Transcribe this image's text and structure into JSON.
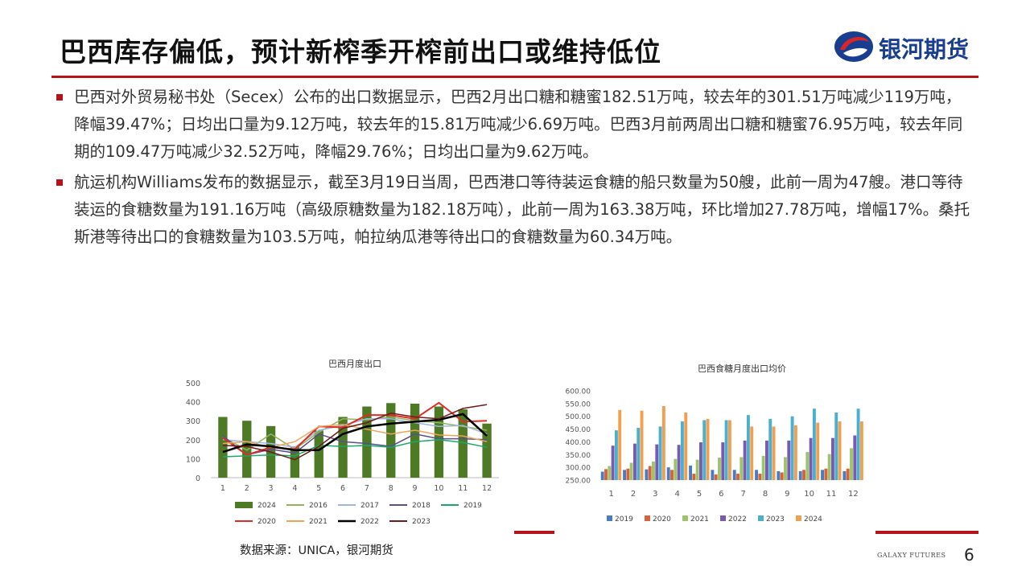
{
  "title": "巴西库存偏低，预计新榨季开榨前出口或维持低位",
  "logo": {
    "text": "银河期货"
  },
  "bullets": [
    "巴西对外贸易秘书处（Secex）公布的出口数据显示，巴西2月出口糖和糖蜜182.51万吨，较去年的301.51万吨减少119万吨，降幅39.47%；日均出口量为9.12万吨，较去年的15.81万吨减少6.69万吨。巴西3月前两周出口糖和糖蜜76.95万吨，较去年同期的109.47万吨减少32.52万吨，降幅29.76%；日均出口量为9.62万吨。",
    "航运机构Williams发布的数据显示，截至3月19日当周，巴西港口等待装运食糖的船只数量为50艘，此前一周为47艘。港口等待装运的食糖数量为191.16万吨（高级原糖数量为182.18万吨），此前一周为163.38万吨，环比增加27.78万吨，增幅17%。桑托斯港等待出口的食糖数量为103.5万吨，帕拉纳瓜港等待出口的食糖数量为60.34万吨。"
  ],
  "chart_data": [
    {
      "type": "bar+line",
      "title": "巴西月度出口",
      "categories": [
        "1",
        "2",
        "3",
        "4",
        "5",
        "6",
        "7",
        "8",
        "9",
        "10",
        "11",
        "12"
      ],
      "ylim": [
        0,
        500
      ],
      "yticks": [
        "0",
        "100",
        "200",
        "300",
        "400",
        "500"
      ],
      "bar_series": {
        "name": "2024",
        "color": "#4e7a26",
        "values": [
          320,
          300,
          272,
          165,
          248,
          320,
          375,
          393,
          390,
          375,
          360,
          285
        ]
      },
      "line_series": [
        {
          "name": "2016",
          "color": "#93b55a",
          "values": [
            215,
            145,
            230,
            150,
            240,
            310,
            305,
            320,
            300,
            290,
            270,
            250
          ]
        },
        {
          "name": "2017",
          "color": "#9fb7e0",
          "values": [
            200,
            190,
            180,
            160,
            250,
            275,
            310,
            310,
            290,
            270,
            275,
            230
          ]
        },
        {
          "name": "2018",
          "color": "#5a4e8c",
          "values": [
            220,
            120,
            150,
            130,
            230,
            190,
            180,
            165,
            230,
            205,
            205,
            200
          ]
        },
        {
          "name": "2019",
          "color": "#1aa866",
          "values": [
            110,
            115,
            120,
            115,
            170,
            165,
            170,
            160,
            190,
            200,
            185,
            160
          ]
        },
        {
          "name": "2020",
          "color": "#e02c25",
          "values": [
            210,
            120,
            160,
            150,
            270,
            265,
            330,
            330,
            310,
            395,
            295,
            300
          ]
        },
        {
          "name": "2021",
          "color": "#f0a35a",
          "values": [
            180,
            190,
            160,
            190,
            270,
            280,
            255,
            230,
            250,
            225,
            220,
            190
          ]
        },
        {
          "name": "2022",
          "color": "#000000",
          "values": [
            135,
            175,
            165,
            145,
            145,
            230,
            270,
            285,
            295,
            305,
            335,
            220
          ]
        },
        {
          "name": "2023",
          "color": "#6e1b1b",
          "values": [
            170,
            165,
            135,
            95,
            165,
            260,
            290,
            340,
            320,
            310,
            365,
            385
          ]
        }
      ]
    },
    {
      "type": "bar",
      "title": "巴西食糖月度出口均价",
      "categories": [
        "1",
        "2",
        "3",
        "4",
        "5",
        "6",
        "7",
        "8",
        "9",
        "10",
        "11",
        "12"
      ],
      "ylim": [
        250,
        600
      ],
      "yticks": [
        "250.00",
        "300.00",
        "350.00",
        "400.00",
        "450.00",
        "500.00",
        "550.00",
        "600.00"
      ],
      "series": [
        {
          "name": "2019",
          "color": "#4a7cc2",
          "values": [
            283,
            290,
            292,
            300,
            307,
            290,
            290,
            290,
            285,
            285,
            290,
            285
          ]
        },
        {
          "name": "2020",
          "color": "#d8633a",
          "values": [
            293,
            295,
            305,
            290,
            275,
            272,
            275,
            275,
            280,
            290,
            295,
            295
          ]
        },
        {
          "name": "2021",
          "color": "#9cc46a",
          "values": [
            305,
            318,
            323,
            333,
            330,
            338,
            340,
            345,
            340,
            360,
            352,
            375
          ]
        },
        {
          "name": "2022",
          "color": "#7a5ab0",
          "values": [
            385,
            393,
            390,
            388,
            398,
            398,
            405,
            405,
            405,
            415,
            415,
            425
          ]
        },
        {
          "name": "2023",
          "color": "#4ab0d0",
          "values": [
            445,
            455,
            460,
            480,
            485,
            485,
            505,
            490,
            500,
            530,
            515,
            530
          ]
        },
        {
          "name": "2024",
          "color": "#f0a050",
          "values": [
            525,
            522,
            540,
            515,
            490,
            485,
            460,
            460,
            465,
            475,
            480,
            480
          ]
        }
      ]
    }
  ],
  "source": "数据来源：UNICA，银河期货",
  "footer": {
    "brand": "GALAXY FUTURES",
    "page": "6"
  }
}
